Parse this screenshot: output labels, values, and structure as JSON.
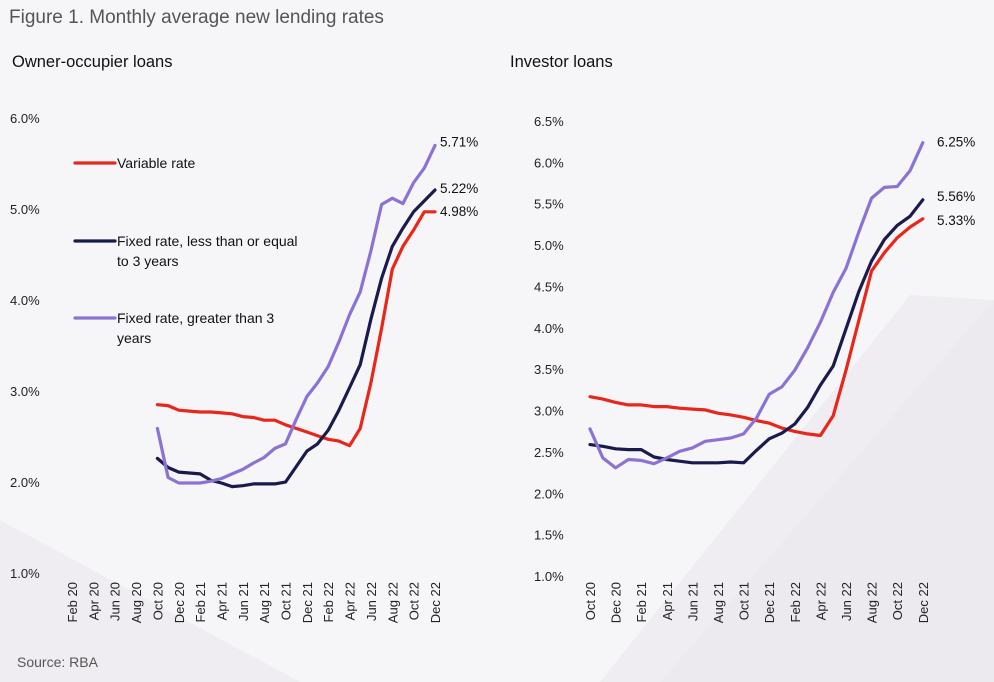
{
  "figure_title": "Figure 1. Monthly average new lending rates",
  "source": "Source: RBA",
  "colors": {
    "variable": "#e8261a",
    "fixed_short": "#1a1a4e",
    "fixed_long": "#8b73d6",
    "background": "#f6f5f7"
  },
  "chart_data": [
    {
      "type": "line",
      "title": "Owner-occupier loans",
      "y_tick_labels": [
        "1.0%",
        "2.0%",
        "3.0%",
        "4.0%",
        "5.0%",
        "6.0%"
      ],
      "ylim": [
        1.0,
        6.0
      ],
      "x_tick_labels": [
        "Feb 20",
        "Apr 20",
        "Jun 20",
        "Aug 20",
        "Oct 20",
        "Dec 20",
        "Feb 21",
        "Apr 21",
        "Jun 21",
        "Aug 21",
        "Oct 21",
        "Dec 21",
        "Feb 22",
        "Apr 22",
        "Jun 22",
        "Aug 22",
        "Oct 22",
        "Dec 22"
      ],
      "x": [
        "Oct 20",
        "Nov 20",
        "Dec 20",
        "Jan 21",
        "Feb 21",
        "Mar 21",
        "Apr 21",
        "May 21",
        "Jun 21",
        "Jul 21",
        "Aug 21",
        "Sep 21",
        "Oct 21",
        "Nov 21",
        "Dec 21",
        "Jan 22",
        "Feb 22",
        "Mar 22",
        "Apr 22",
        "May 22",
        "Jun 22",
        "Jul 22",
        "Aug 22",
        "Sep 22",
        "Oct 22",
        "Nov 22",
        "Dec 22"
      ],
      "grid": false,
      "legend": [
        {
          "label": "Variable rate",
          "series": "variable"
        },
        {
          "label": "Fixed rate, less than or equal",
          "label2": "to 3 years",
          "series": "fixed_short"
        },
        {
          "label": "Fixed rate, greater than 3",
          "label2": "years",
          "series": "fixed_long"
        }
      ],
      "series": [
        {
          "name": "Variable rate",
          "key": "variable",
          "values": [
            2.86,
            2.85,
            2.8,
            2.79,
            2.78,
            2.78,
            2.77,
            2.76,
            2.73,
            2.72,
            2.69,
            2.69,
            2.64,
            2.6,
            2.56,
            2.52,
            2.48,
            2.46,
            2.41,
            2.6,
            3.1,
            3.7,
            4.35,
            4.6,
            4.78,
            4.98,
            4.98
          ],
          "end_label": "4.98%"
        },
        {
          "name": "Fixed rate, less than or equal to 3 years",
          "key": "fixed_short",
          "values": [
            2.27,
            2.17,
            2.12,
            2.11,
            2.1,
            2.03,
            2.0,
            1.96,
            1.97,
            1.99,
            1.99,
            1.99,
            2.01,
            2.18,
            2.35,
            2.43,
            2.58,
            2.8,
            3.05,
            3.3,
            3.8,
            4.25,
            4.6,
            4.8,
            4.98,
            5.1,
            5.22
          ],
          "end_label": "5.22%"
        },
        {
          "name": "Fixed rate, greater than 3 years",
          "key": "fixed_long",
          "values": [
            2.6,
            2.06,
            2.0,
            2.0,
            2.0,
            2.02,
            2.05,
            2.1,
            2.15,
            2.22,
            2.28,
            2.38,
            2.43,
            2.7,
            2.95,
            3.1,
            3.28,
            3.55,
            3.85,
            4.1,
            4.55,
            5.06,
            5.13,
            5.07,
            5.3,
            5.46,
            5.71
          ],
          "end_label": "5.71%"
        }
      ]
    },
    {
      "type": "line",
      "title": "Investor loans",
      "y_tick_labels": [
        "1.0%",
        "1.5%",
        "2.0%",
        "2.5%",
        "3.0%",
        "3.5%",
        "4.0%",
        "4.5%",
        "5.0%",
        "5.5%",
        "6.0%",
        "6.5%"
      ],
      "ylim": [
        1.0,
        6.5
      ],
      "x_tick_labels": [
        "Oct 20",
        "Dec 20",
        "Feb 21",
        "Apr 21",
        "Jun 21",
        "Aug 21",
        "Oct 21",
        "Dec 21",
        "Feb 22",
        "Apr 22",
        "Jun 22",
        "Aug 22",
        "Oct 22",
        "Dec 22"
      ],
      "x": [
        "Oct 20",
        "Nov 20",
        "Dec 20",
        "Jan 21",
        "Feb 21",
        "Mar 21",
        "Apr 21",
        "May 21",
        "Jun 21",
        "Jul 21",
        "Aug 21",
        "Sep 21",
        "Oct 21",
        "Nov 21",
        "Dec 21",
        "Jan 22",
        "Feb 22",
        "Mar 22",
        "Apr 22",
        "May 22",
        "Jun 22",
        "Jul 22",
        "Aug 22",
        "Sep 22",
        "Oct 22",
        "Nov 22",
        "Dec 22"
      ],
      "grid": false,
      "series": [
        {
          "name": "Variable rate",
          "key": "variable",
          "values": [
            3.18,
            3.15,
            3.11,
            3.08,
            3.08,
            3.06,
            3.06,
            3.04,
            3.03,
            3.02,
            2.98,
            2.96,
            2.93,
            2.89,
            2.86,
            2.8,
            2.76,
            2.73,
            2.71,
            2.95,
            3.5,
            4.1,
            4.7,
            4.92,
            5.1,
            5.23,
            5.33
          ],
          "end_label": "5.33%"
        },
        {
          "name": "Fixed rate, less than or equal to 3 years",
          "key": "fixed_short",
          "values": [
            2.6,
            2.58,
            2.55,
            2.54,
            2.54,
            2.45,
            2.42,
            2.4,
            2.38,
            2.38,
            2.38,
            2.39,
            2.38,
            2.53,
            2.67,
            2.74,
            2.85,
            3.05,
            3.32,
            3.55,
            4.0,
            4.45,
            4.82,
            5.08,
            5.25,
            5.36,
            5.56
          ],
          "end_label": "5.56%"
        },
        {
          "name": "Fixed rate, greater than 3 years",
          "key": "fixed_long",
          "values": [
            2.79,
            2.44,
            2.32,
            2.42,
            2.41,
            2.37,
            2.44,
            2.52,
            2.56,
            2.64,
            2.66,
            2.68,
            2.73,
            2.92,
            3.21,
            3.3,
            3.5,
            3.77,
            4.08,
            4.44,
            4.73,
            5.17,
            5.58,
            5.71,
            5.72,
            5.91,
            6.25
          ],
          "end_label": "6.25%"
        }
      ]
    }
  ]
}
